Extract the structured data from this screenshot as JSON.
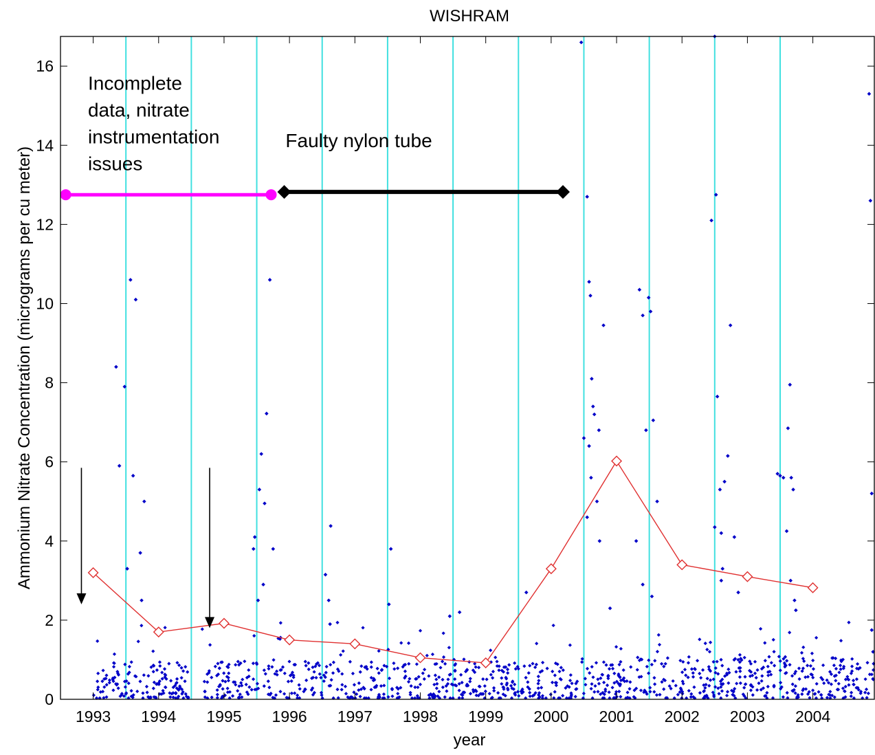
{
  "chart_data": {
    "type": "scatter",
    "title": "WISHRAM",
    "xlabel": "year",
    "ylabel": "Ammonium Nitrate Concentration (micrograms per cu meter)",
    "xlim": [
      1992.5,
      2004.95
    ],
    "ylim": [
      0,
      16.75
    ],
    "x_ticks": [
      "1993",
      "1994",
      "1995",
      "1996",
      "1997",
      "1998",
      "1999",
      "2000",
      "2001",
      "2002",
      "2003",
      "2004"
    ],
    "y_ticks": [
      "0",
      "2",
      "4",
      "6",
      "8",
      "10",
      "12",
      "14",
      "16"
    ],
    "grid": false,
    "legend": "none",
    "colors": {
      "points": "#0000c8",
      "annual_mean": "#e03030",
      "vertical_lines": "#40e0e0",
      "incomplete_bar": "#ff00ff",
      "faulty_bar": "#000000",
      "arrows": "#000000"
    },
    "vertical_lines_x": [
      1993.5,
      1994.5,
      1995.5,
      1996.5,
      1997.5,
      1998.5,
      1999.5,
      2000.5,
      2001.5,
      2002.5,
      2003.5
    ],
    "annual_mean": {
      "x": [
        1993,
        1994,
        1995,
        1996,
        1997,
        1998,
        1999,
        2000,
        2001,
        2002,
        2003,
        2004
      ],
      "y": [
        3.2,
        1.7,
        1.92,
        1.5,
        1.4,
        1.05,
        0.92,
        3.3,
        6.02,
        3.4,
        3.1,
        2.82
      ]
    },
    "notable_points": {
      "x": [
        1993.35,
        1993.4,
        1993.48,
        1993.52,
        1993.57,
        1993.61,
        1993.65,
        1993.72,
        1993.74,
        1993.78,
        1995.45,
        1995.47,
        1995.54,
        1995.57,
        1995.62,
        1995.65,
        1995.7,
        1995.6,
        1995.52,
        1995.75,
        1996.55,
        1996.6,
        1996.63,
        1996.62,
        1997.52,
        1997.55,
        1998.45,
        1998.6,
        1999.62,
        2000.46,
        2000.5,
        2000.55,
        2000.55,
        2000.58,
        2000.6,
        2000.62,
        2000.64,
        2000.66,
        2000.58,
        2000.61,
        2000.7,
        2000.73,
        2000.74,
        2000.8,
        2000.9,
        2001.35,
        2001.4,
        2001.4,
        2001.45,
        2001.49,
        2001.52,
        2001.56,
        2001.62,
        2001.3,
        2001.54,
        2002.45,
        2002.5,
        2002.52,
        2002.54,
        2002.58,
        2002.6,
        2002.6,
        2002.65,
        2002.7,
        2002.74,
        2002.8,
        2002.86,
        2002.5,
        2002.62,
        2003.46,
        2003.5,
        2003.55,
        2003.62,
        2003.65,
        2003.67,
        2003.7,
        2003.72,
        2003.74,
        2003.6,
        2003.66,
        2004.86,
        2004.88,
        2004.9,
        2004.9,
        2004.92,
        2004.93
      ],
      "y": [
        8.4,
        5.9,
        7.9,
        3.3,
        10.6,
        5.65,
        10.1,
        3.7,
        2.5,
        5.0,
        3.8,
        4.1,
        5.3,
        6.2,
        4.95,
        7.22,
        10.6,
        2.9,
        2.5,
        3.8,
        3.15,
        2.5,
        4.38,
        1.9,
        2.4,
        3.8,
        2.1,
        2.2,
        2.7,
        16.6,
        6.6,
        4.6,
        12.7,
        10.55,
        10.2,
        8.1,
        7.4,
        7.2,
        6.4,
        5.6,
        5.0,
        6.8,
        4.0,
        9.45,
        2.3,
        10.35,
        9.7,
        2.9,
        6.8,
        10.15,
        9.8,
        7.05,
        5.0,
        4.0,
        2.6,
        12.1,
        16.75,
        12.75,
        7.65,
        5.3,
        4.2,
        3.0,
        5.5,
        6.15,
        9.45,
        4.1,
        2.7,
        4.35,
        3.3,
        5.7,
        5.65,
        5.6,
        6.85,
        7.95,
        5.6,
        5.3,
        2.5,
        2.25,
        4.25,
        3.0,
        15.3,
        12.6,
        5.2,
        1.75,
        1.2,
        0.9
      ]
    },
    "annotations": [
      {
        "lines": [
          "Incomplete",
          "data, nitrate",
          "instrumentation",
          "issues"
        ],
        "x": 1992.92,
        "y": 15.4
      },
      {
        "lines": [
          "Faulty nylon tube"
        ],
        "x": 1995.94,
        "y": 13.95
      }
    ],
    "period_bars": [
      {
        "x_start": 1992.58,
        "x_end": 1995.72,
        "y": 12.75,
        "style": "magenta-circle-ends"
      },
      {
        "x_start": 1995.92,
        "x_end": 2000.18,
        "y": 12.82,
        "style": "black-diamond-ends"
      }
    ],
    "arrows": [
      {
        "x": 1992.82,
        "y_from": 5.85,
        "y_to": 2.4
      },
      {
        "x": 1994.78,
        "y_from": 5.85,
        "y_to": 1.8
      }
    ]
  }
}
